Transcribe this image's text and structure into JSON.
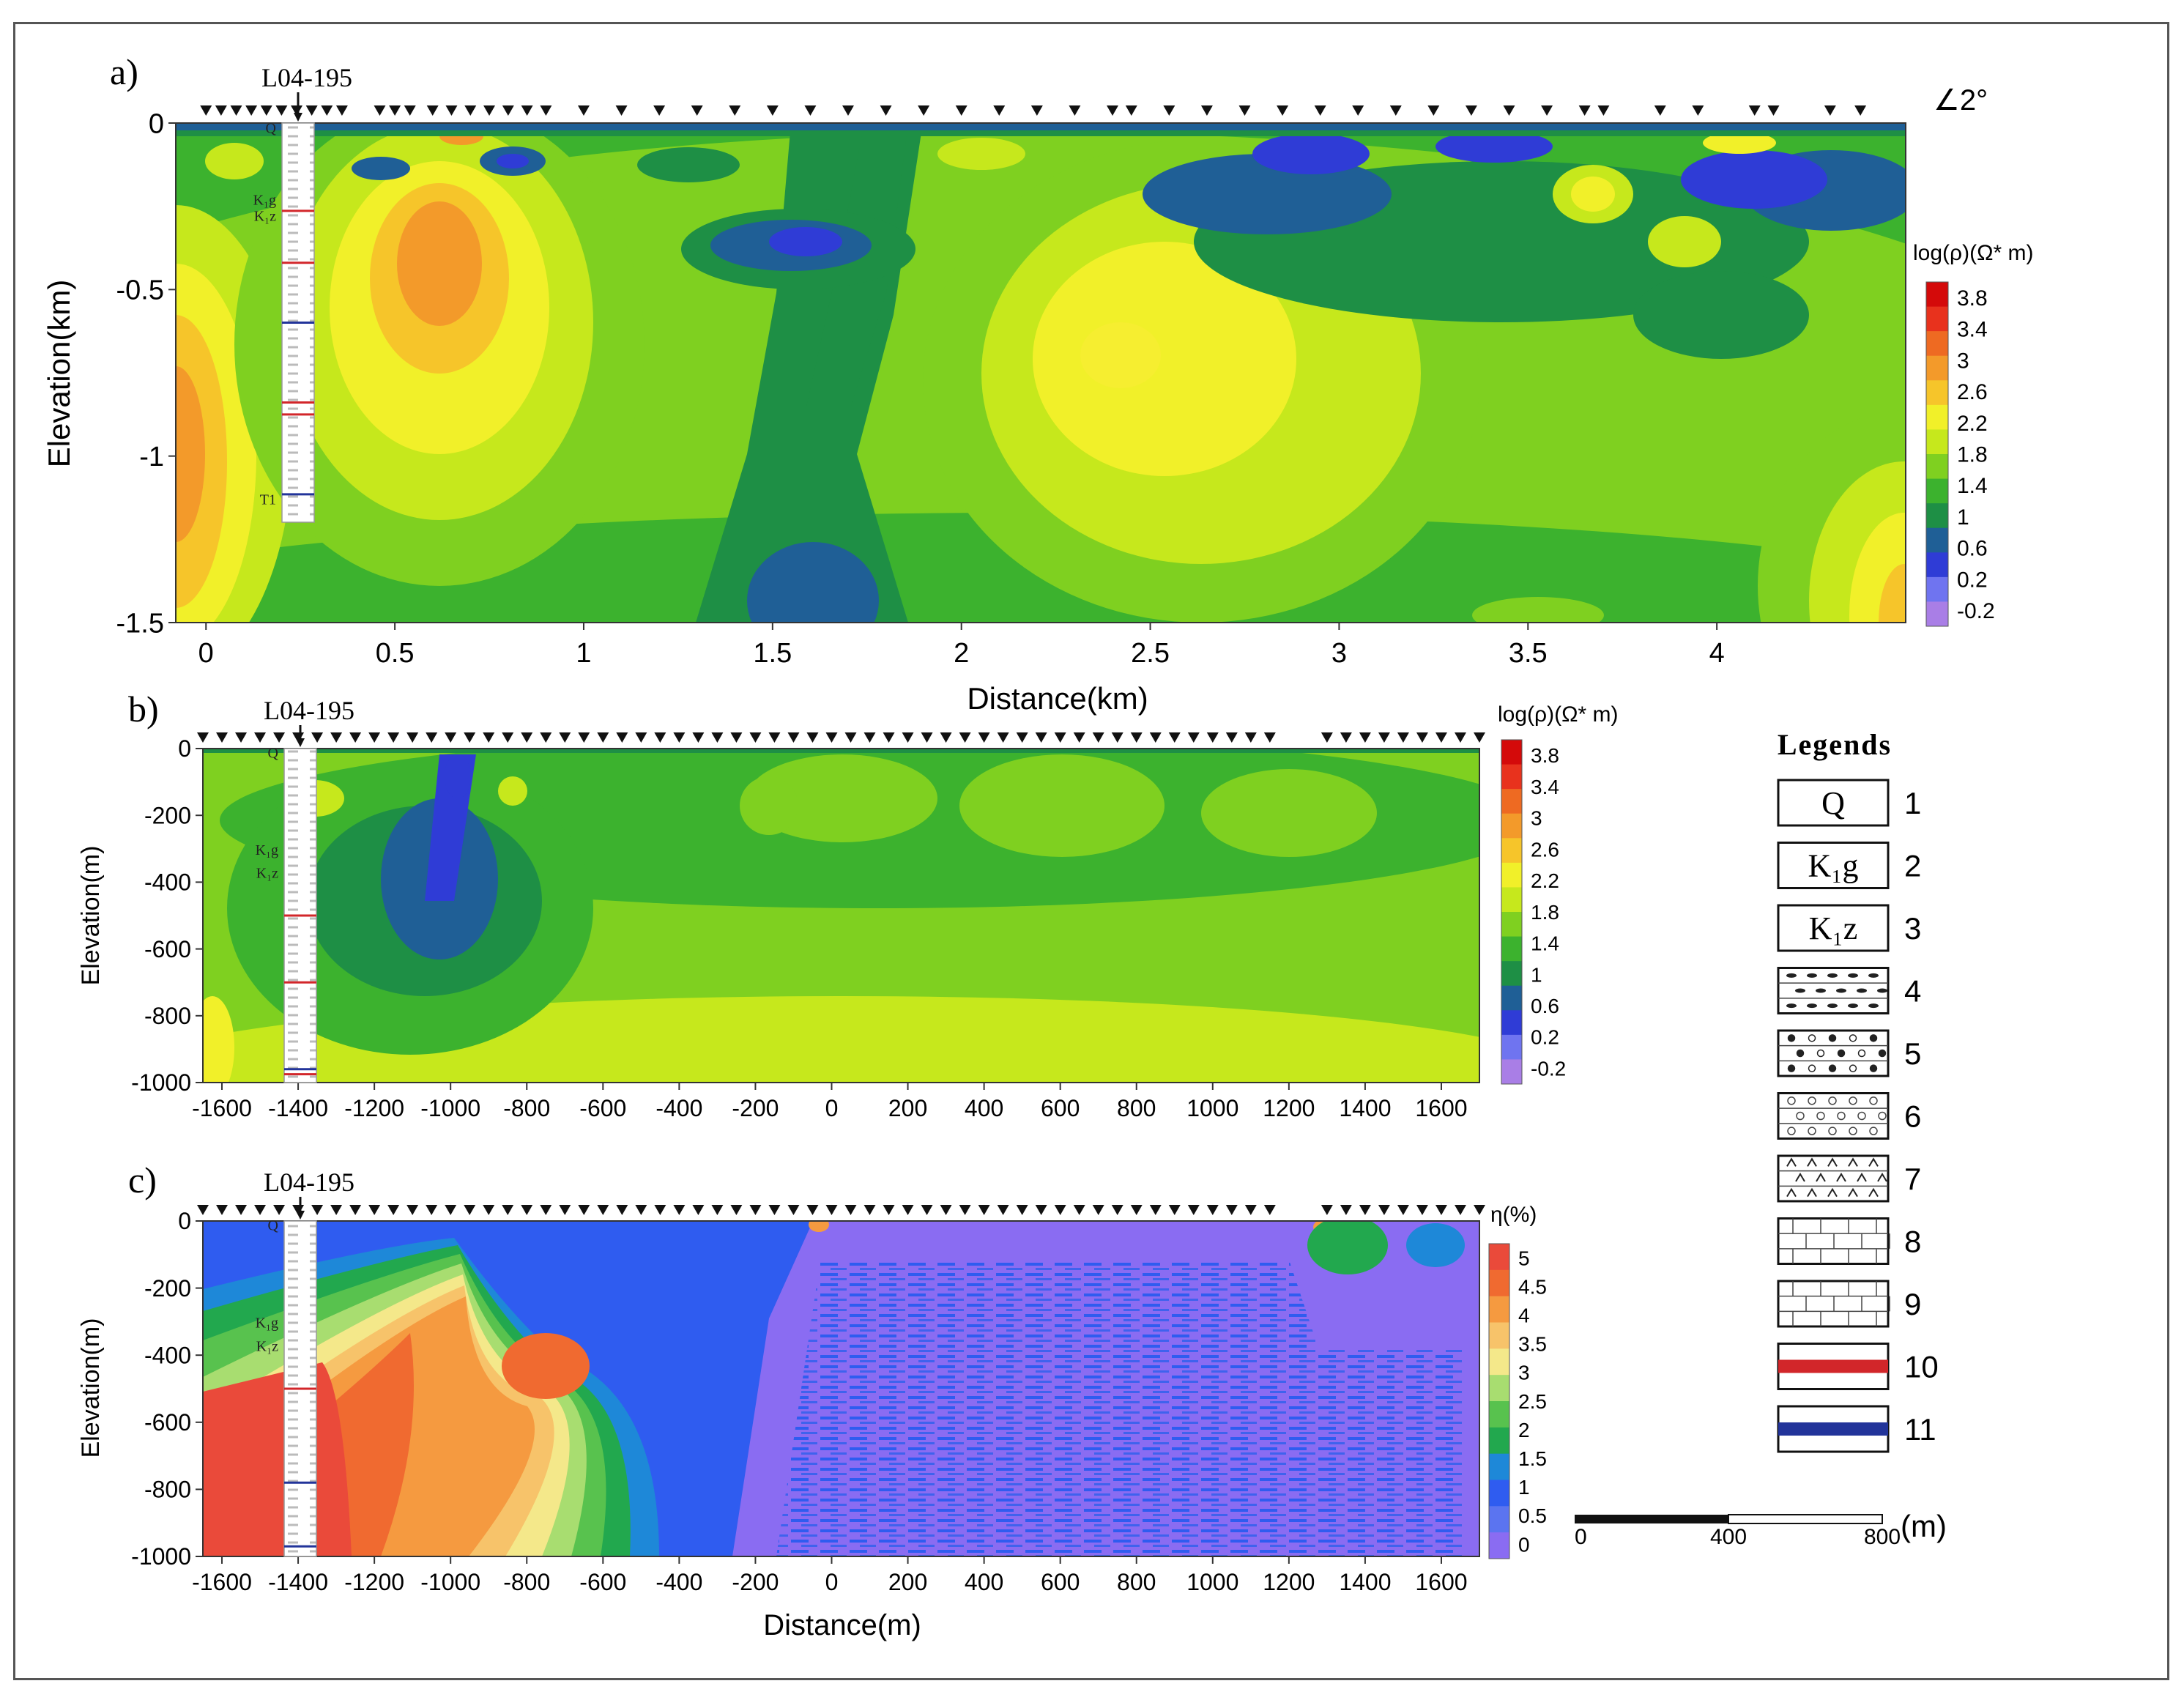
{
  "colors": {
    "resistivity": [
      "#a97ee6",
      "#6f74f0",
      "#2f3cd6",
      "#1f5f96",
      "#1e8f45",
      "#3cb22e",
      "#7fd020",
      "#c6e81c",
      "#f1f029",
      "#f6c52a",
      "#f39a2a",
      "#ee6a22",
      "#e8321d",
      "#d40a0a"
    ],
    "ip": [
      "#8a6cf2",
      "#5b74f0",
      "#2f5cf0",
      "#1e88d8",
      "#22a84e",
      "#58c24e",
      "#a8dd70",
      "#f4e88a",
      "#f7c36a",
      "#f59a40",
      "#f06a30",
      "#ea4a3a"
    ],
    "layer_red": "#d2262a",
    "layer_blue": "#22349a"
  },
  "well_label": "L04-195",
  "strike": "∠2°",
  "strata_labels": {
    "q": "Q",
    "k1g": "K₁g",
    "k1z": "K₁z",
    "t1": "T1"
  },
  "chart_data": [
    {
      "panel": "a)",
      "type": "heatmap",
      "xlabel": "Distance(km)",
      "ylabel": "Elevation(km)",
      "xlim": [
        -0.08,
        4.5
      ],
      "ylim": [
        -1.5,
        0
      ],
      "x_ticks": [
        "0",
        "0.5",
        "1",
        "1.5",
        "2",
        "2.5",
        "3",
        "3.5",
        "4"
      ],
      "x_tick_values": [
        0,
        0.5,
        1,
        1.5,
        2,
        2.5,
        3,
        3.5,
        4
      ],
      "y_ticks": [
        "0",
        "-0.5",
        "-1",
        "-1.5"
      ],
      "y_tick_values": [
        0,
        -0.5,
        -1,
        -1.5
      ],
      "colorbar_title": "log(ρ)(Ω* m)",
      "colorbar_ticks": [
        "3.8",
        "3.4",
        "3",
        "2.6",
        "2.2",
        "1.8",
        "1.4",
        "1",
        "0.6",
        "0.2",
        "-0.2"
      ],
      "stations_x": [
        0,
        0.04,
        0.08,
        0.12,
        0.16,
        0.2,
        0.24,
        0.28,
        0.32,
        0.36,
        0.46,
        0.5,
        0.54,
        0.6,
        0.65,
        0.7,
        0.75,
        0.8,
        0.85,
        0.9,
        1.0,
        1.1,
        1.2,
        1.3,
        1.4,
        1.5,
        1.6,
        1.7,
        1.8,
        1.9,
        2.0,
        2.1,
        2.2,
        2.3,
        2.4,
        2.45,
        2.55,
        2.65,
        2.75,
        2.85,
        2.95,
        3.05,
        3.15,
        3.25,
        3.35,
        3.45,
        3.55,
        3.65,
        3.7,
        3.85,
        3.95,
        4.1,
        4.15,
        4.3,
        4.38
      ]
    },
    {
      "panel": "b)",
      "type": "heatmap",
      "xlabel": "",
      "ylabel": "Elevation(m)",
      "xlim": [
        -1650,
        1700
      ],
      "ylim": [
        -1000,
        0
      ],
      "x_ticks": [
        "-1600",
        "-1400",
        "-1200",
        "-1000",
        "-800",
        "-600",
        "-400",
        "-200",
        "0",
        "200",
        "400",
        "600",
        "800",
        "1000",
        "1200",
        "1400",
        "1600"
      ],
      "x_tick_values": [
        -1600,
        -1400,
        -1200,
        -1000,
        -800,
        -600,
        -400,
        -200,
        0,
        200,
        400,
        600,
        800,
        1000,
        1200,
        1400,
        1600
      ],
      "y_ticks": [
        "0",
        "-200",
        "-400",
        "-600",
        "-800",
        "-1000"
      ],
      "y_tick_values": [
        0,
        -200,
        -400,
        -600,
        -800,
        -1000
      ],
      "colorbar_title": "log(ρ)(Ω* m)",
      "colorbar_ticks": [
        "3.8",
        "3.4",
        "3",
        "2.6",
        "2.2",
        "1.8",
        "1.4",
        "1",
        "0.6",
        "0.2",
        "-0.2"
      ]
    },
    {
      "panel": "c)",
      "type": "heatmap",
      "xlabel": "Distance(m)",
      "ylabel": "Elevation(m)",
      "xlim": [
        -1650,
        1700
      ],
      "ylim": [
        -1000,
        0
      ],
      "x_ticks": [
        "-1600",
        "-1400",
        "-1200",
        "-1000",
        "-800",
        "-600",
        "-400",
        "-200",
        "0",
        "200",
        "400",
        "600",
        "800",
        "1000",
        "1200",
        "1400",
        "1600"
      ],
      "x_tick_values": [
        -1600,
        -1400,
        -1200,
        -1000,
        -800,
        -600,
        -400,
        -200,
        0,
        200,
        400,
        600,
        800,
        1000,
        1200,
        1400,
        1600
      ],
      "y_ticks": [
        "0",
        "-200",
        "-400",
        "-600",
        "-800",
        "-1000"
      ],
      "y_tick_values": [
        0,
        -200,
        -400,
        -600,
        -800,
        -1000
      ],
      "colorbar_title": "η(%)",
      "colorbar_ticks": [
        "5",
        "4.5",
        "4",
        "3.5",
        "3",
        "2.5",
        "2",
        "1.5",
        "1",
        "0.5",
        "0"
      ]
    }
  ],
  "legend": {
    "title": "Legends",
    "items": [
      {
        "num": "1",
        "label": "Q",
        "kind": "text"
      },
      {
        "num": "2",
        "label": "K₁g",
        "kind": "text"
      },
      {
        "num": "3",
        "label": "K₁z",
        "kind": "text"
      },
      {
        "num": "4",
        "num_pattern": "dash",
        "label": "",
        "kind": "pattern"
      },
      {
        "num": "5",
        "label": "",
        "kind": "pattern"
      },
      {
        "num": "6",
        "label": "",
        "kind": "pattern"
      },
      {
        "num": "7",
        "label": "",
        "kind": "pattern"
      },
      {
        "num": "8",
        "label": "",
        "kind": "pattern"
      },
      {
        "num": "9",
        "label": "",
        "kind": "pattern"
      },
      {
        "num": "10",
        "label": "",
        "kind": "red-bar"
      },
      {
        "num": "11",
        "label": "",
        "kind": "blue-bar"
      }
    ]
  },
  "scale_bar": {
    "ticks": [
      "0",
      "400",
      "800"
    ],
    "unit": "(m)"
  }
}
